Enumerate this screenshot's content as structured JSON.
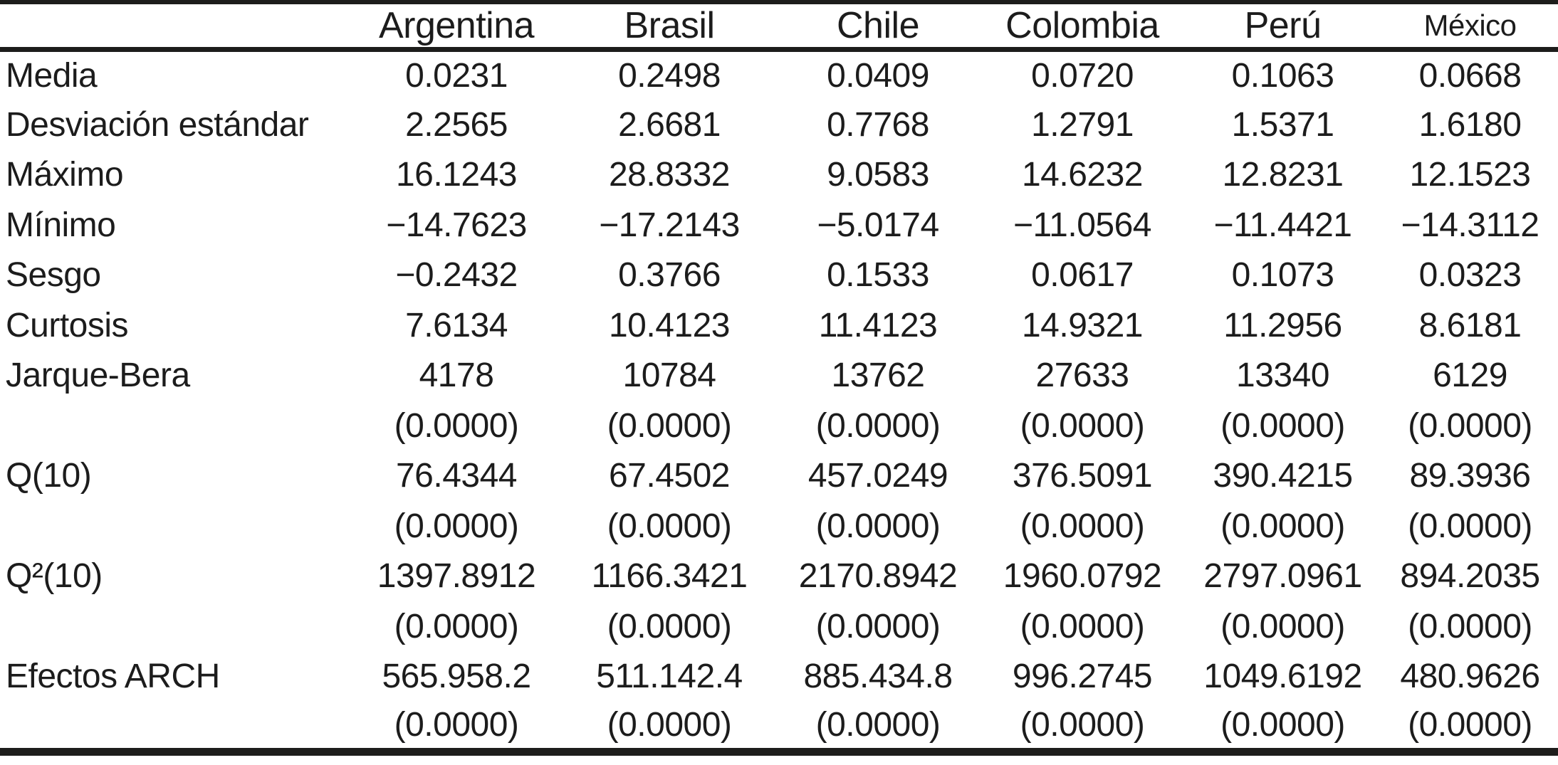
{
  "colors": {
    "text": "#1c1c1c",
    "rule": "#1d1d1b",
    "background": "#ffffff"
  },
  "table": {
    "columns": [
      "",
      "Argentina",
      "Brasil",
      "Chile",
      "Colombia",
      "Perú",
      "México"
    ],
    "rows": [
      {
        "label": "Media",
        "values": [
          "0.0231",
          "0.2498",
          "0.0409",
          "0.0720",
          "0.1063",
          "0.0668"
        ]
      },
      {
        "label": "Desviación estándar",
        "values": [
          "2.2565",
          "2.6681",
          "0.7768",
          "1.2791",
          "1.5371",
          "1.6180"
        ]
      },
      {
        "label": "Máximo",
        "values": [
          "16.1243",
          "28.8332",
          "9.0583",
          "14.6232",
          "12.8231",
          "12.1523"
        ]
      },
      {
        "label": "Mínimo",
        "values": [
          "−14.7623",
          "−17.2143",
          "−5.0174",
          "−11.0564",
          "−11.4421",
          "−14.3112"
        ]
      },
      {
        "label": "Sesgo",
        "values": [
          "−0.2432",
          "0.3766",
          "0.1533",
          "0.0617",
          "0.1073",
          "0.0323"
        ]
      },
      {
        "label": "Curtosis",
        "values": [
          "7.6134",
          "10.4123",
          "11.4123",
          "14.9321",
          "11.2956",
          "8.6181"
        ]
      },
      {
        "label": "Jarque-Bera",
        "values": [
          "4178",
          "10784",
          "13762",
          "27633",
          "13340",
          "6129"
        ]
      },
      {
        "label": "",
        "values": [
          "(0.0000)",
          "(0.0000)",
          "(0.0000)",
          "(0.0000)",
          "(0.0000)",
          "(0.0000)"
        ]
      },
      {
        "label": "Q(10)",
        "values": [
          "76.4344",
          "67.4502",
          "457.0249",
          "376.5091",
          "390.4215",
          "89.3936"
        ]
      },
      {
        "label": "",
        "values": [
          "(0.0000)",
          "(0.0000)",
          "(0.0000)",
          "(0.0000)",
          "(0.0000)",
          "(0.0000)"
        ]
      },
      {
        "label": "Q²(10)",
        "values": [
          "1397.8912",
          "1166.3421",
          "2170.8942",
          "1960.0792",
          "2797.0961",
          "894.2035"
        ]
      },
      {
        "label": "",
        "values": [
          "(0.0000)",
          "(0.0000)",
          "(0.0000)",
          "(0.0000)",
          "(0.0000)",
          "(0.0000)"
        ]
      },
      {
        "label": "Efectos ARCH",
        "values": [
          "565.958.2",
          "511.142.4",
          "885.434.8",
          "996.2745",
          "1049.6192",
          "480.9626"
        ]
      },
      {
        "label": "",
        "values": [
          "(0.0000)",
          "(0.0000)",
          "(0.0000)",
          "(0.0000)",
          "(0.0000)",
          "(0.0000)"
        ]
      }
    ]
  }
}
